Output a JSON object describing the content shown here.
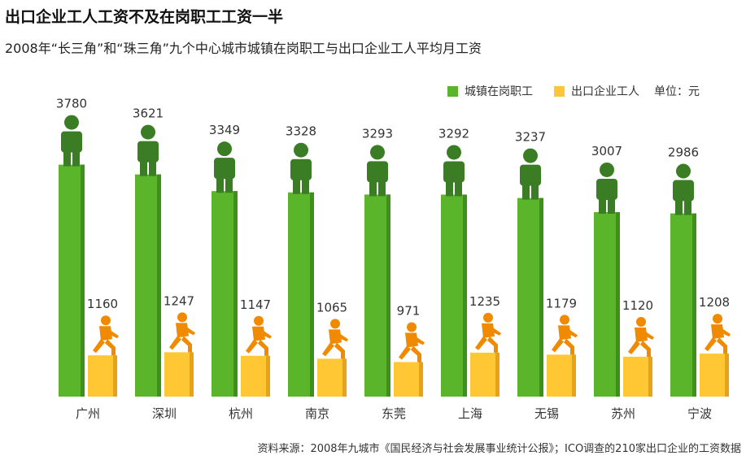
{
  "title": "出口企业工人工资不及在岗职工工资一半",
  "subtitle": "2008年“长三角”和“珠三角”九个中心城市城镇在岗职工与出口企业工人平均月工资",
  "legend": {
    "urban": "城镇在岗职工",
    "export": "出口企业工人",
    "unit": "单位：元"
  },
  "source": "资料来源：2008年九城市《国民经济与社会发展事业统计公报》；ICO调查的210家出口企业的工资数据",
  "colors": {
    "green": "#5ab52b",
    "green_dark": "#3f8f1e",
    "figure_green": "#3b7d24",
    "yellow": "#ffc733",
    "yellow_dark": "#e8a21a",
    "figure_orange": "#f08a00"
  },
  "chart_data": {
    "type": "bar",
    "categories": [
      "广州",
      "深圳",
      "杭州",
      "南京",
      "东莞",
      "上海",
      "无锡",
      "苏州",
      "宁波"
    ],
    "series": [
      {
        "name": "城镇在岗职工",
        "values": [
          3780,
          3621,
          3349,
          3328,
          3293,
          3292,
          3237,
          3007,
          2986
        ]
      },
      {
        "name": "出口企业工人",
        "values": [
          1160,
          1247,
          1147,
          1065,
          971,
          1235,
          1179,
          1120,
          1208
        ]
      }
    ],
    "ylim": [
      0,
      4000
    ],
    "grid": false,
    "legend_position": "top-right"
  }
}
